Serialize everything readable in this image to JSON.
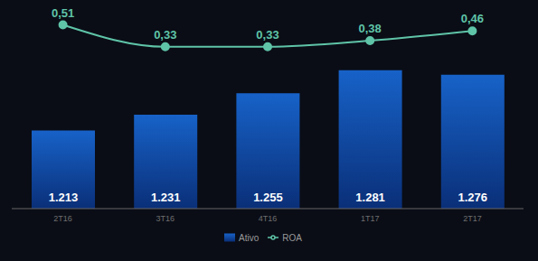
{
  "chart_data": {
    "type": "bar",
    "categories": [
      "2T16",
      "3T16",
      "4T16",
      "1T17",
      "2T17"
    ],
    "series": [
      {
        "name": "Ativo",
        "type": "bar",
        "color": "#1762c8",
        "values": [
          1213,
          1231,
          1255,
          1281,
          1276
        ],
        "value_labels": [
          "1.213",
          "1.231",
          "1.255",
          "1.281",
          "1.276"
        ]
      },
      {
        "name": "ROA",
        "type": "line",
        "axis": "y2",
        "color": "#5fc4a8",
        "marker": "circle",
        "values": [
          0.51,
          0.33,
          0.33,
          0.38,
          0.46
        ],
        "value_labels": [
          "0,51",
          "0,33",
          "0,33",
          "0,38",
          "0,46"
        ]
      }
    ],
    "ylim": [
      1125,
      1350
    ],
    "yticks": [
      1125,
      1350
    ],
    "y2lim": [
      -1,
      0.64
    ],
    "y2ticks": [
      -1,
      0.64
    ],
    "grid": false,
    "legend": "bottom",
    "data_labels": true,
    "tick_labels": "x"
  }
}
